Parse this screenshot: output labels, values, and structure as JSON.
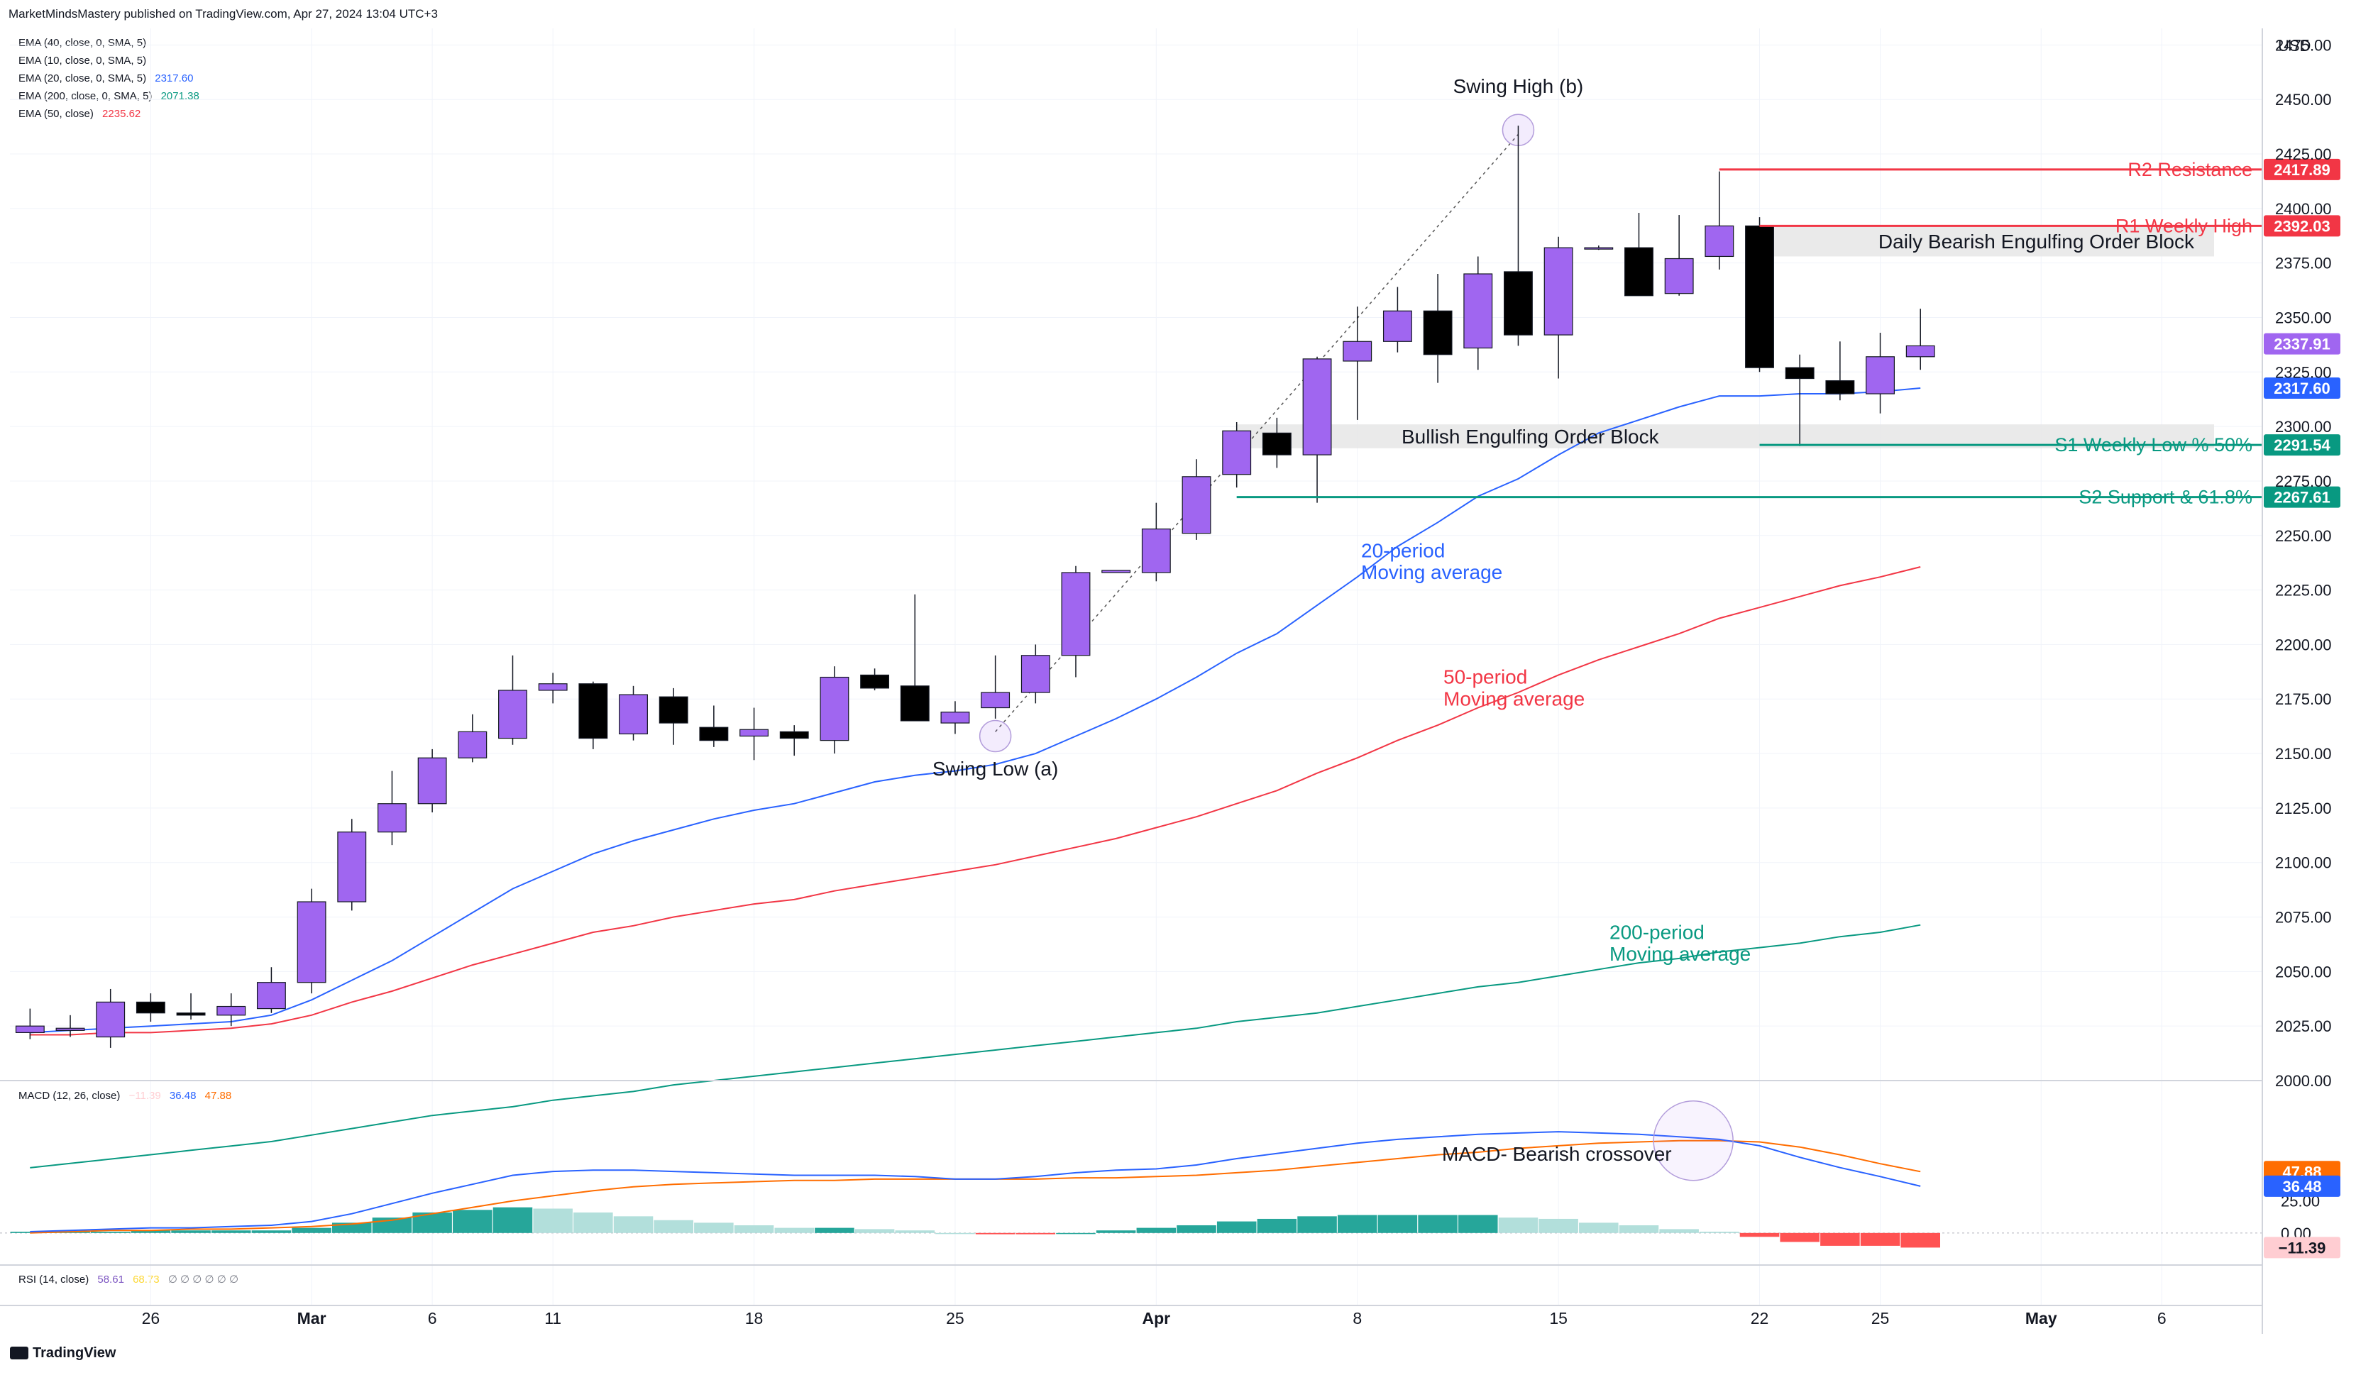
{
  "header": {
    "publisher": "MarketMindsMastery published on TradingView.com, Apr 27, 2024 13:04 UTC+3",
    "currency": "USD",
    "brand": "TradingView"
  },
  "indicators": [
    {
      "label": "EMA (40, close, 0, SMA, 5)",
      "value": "",
      "color": "#131722"
    },
    {
      "label": "EMA (10, close, 0, SMA, 5)",
      "value": "",
      "color": "#131722"
    },
    {
      "label": "EMA (20, close, 0, SMA, 5)",
      "value": "2317.60",
      "color": "#2962ff"
    },
    {
      "label": "EMA (200, close, 0, SMA, 5)",
      "value": "2071.38",
      "color": "#089981"
    },
    {
      "label": "EMA (50, close)",
      "value": "2235.62",
      "color": "#f23645"
    }
  ],
  "macd_legend": {
    "label": "MACD (12, 26, close)",
    "hist": "−11.39",
    "macd": "36.48",
    "signal": "47.88"
  },
  "rsi_legend": {
    "label": "RSI (14, close)",
    "rsi": "58.61",
    "ma": "68.73",
    "rest": "∅ ∅ ∅ ∅ ∅ ∅"
  },
  "colors": {
    "bull": "#a066f0",
    "bear": "#000000",
    "ema20": "#2962ff",
    "ema50": "#f23645",
    "ema200": "#089981",
    "macd": "#2962ff",
    "signal": "#ff6d00",
    "histUp": "#26a69a",
    "histUpFade": "#b2dfdb",
    "histDown": "#ff5252",
    "histDownFade": "#ffcdd2",
    "grid": "#f0f3fa"
  },
  "chart_data": [
    {
      "type": "candlestick",
      "title": "Price (USD)",
      "ylim": [
        2000,
        2480
      ],
      "yticks": [
        2000,
        2025,
        2050,
        2075,
        2100,
        2125,
        2150,
        2175,
        2200,
        2225,
        2250,
        2275,
        2300,
        2325,
        2350,
        2375,
        2400,
        2425,
        2450,
        2475
      ],
      "xtick_labels": [
        {
          "label": "26",
          "i": 3
        },
        {
          "label": "Mar",
          "i": 7
        },
        {
          "label": "6",
          "i": 10
        },
        {
          "label": "11",
          "i": 13
        },
        {
          "label": "18",
          "i": 18
        },
        {
          "label": "25",
          "i": 23
        },
        {
          "label": "Apr",
          "i": 28
        },
        {
          "label": "8",
          "i": 33
        },
        {
          "label": "15",
          "i": 38
        },
        {
          "label": "22",
          "i": 43
        },
        {
          "label": "25",
          "i": 46
        },
        {
          "label": "May",
          "i": 50
        },
        {
          "label": "6",
          "i": 53
        }
      ],
      "bars_visible": 56,
      "candles": [
        [
          2022,
          2033,
          2019,
          2025
        ],
        [
          2023,
          2030,
          2020,
          2024
        ],
        [
          2020,
          2042,
          2015,
          2036
        ],
        [
          2036,
          2040,
          2027,
          2031
        ],
        [
          2031,
          2040,
          2028,
          2030
        ],
        [
          2030,
          2040,
          2025,
          2034
        ],
        [
          2033,
          2052,
          2031,
          2045
        ],
        [
          2045,
          2088,
          2040,
          2082
        ],
        [
          2082,
          2120,
          2078,
          2114
        ],
        [
          2114,
          2142,
          2108,
          2127
        ],
        [
          2127,
          2152,
          2123,
          2148
        ],
        [
          2148,
          2168,
          2146,
          2160
        ],
        [
          2157,
          2195,
          2154,
          2179
        ],
        [
          2179,
          2187,
          2173,
          2182
        ],
        [
          2182,
          2183,
          2152,
          2157
        ],
        [
          2159,
          2181,
          2156,
          2177
        ],
        [
          2176,
          2180,
          2154,
          2164
        ],
        [
          2162,
          2172,
          2153,
          2156
        ],
        [
          2158,
          2171,
          2147,
          2161
        ],
        [
          2160,
          2163,
          2149,
          2157
        ],
        [
          2156,
          2190,
          2150,
          2185
        ],
        [
          2186,
          2189,
          2179,
          2180
        ],
        [
          2181,
          2223,
          2165,
          2165
        ],
        [
          2164,
          2174,
          2159,
          2169
        ],
        [
          2171,
          2195,
          2166,
          2178
        ],
        [
          2178,
          2200,
          2173,
          2195
        ],
        [
          2195,
          2236,
          2185,
          2233
        ],
        [
          2233,
          2234,
          2233,
          2234
        ],
        [
          2233,
          2265,
          2229,
          2253
        ],
        [
          2251,
          2285,
          2248,
          2277
        ],
        [
          2278,
          2302,
          2272,
          2298
        ],
        [
          2297,
          2304,
          2281,
          2287
        ],
        [
          2287,
          2332,
          2265,
          2331
        ],
        [
          2330,
          2355,
          2303,
          2339
        ],
        [
          2339,
          2364,
          2334,
          2353
        ],
        [
          2353,
          2370,
          2320,
          2333
        ],
        [
          2336,
          2378,
          2326,
          2370
        ],
        [
          2371,
          2438,
          2337,
          2342
        ],
        [
          2342,
          2387,
          2322,
          2382
        ],
        [
          2382,
          2383,
          2381,
          2382
        ],
        [
          2382,
          2398,
          2360,
          2360
        ],
        [
          2361,
          2397,
          2360,
          2377
        ],
        [
          2378,
          2417,
          2372,
          2392
        ],
        [
          2392,
          2396,
          2325,
          2327
        ],
        [
          2327,
          2333,
          2291,
          2322
        ],
        [
          2321,
          2339,
          2312,
          2315
        ],
        [
          2315,
          2343,
          2306,
          2332
        ],
        [
          2332,
          2354,
          2326,
          2337
        ]
      ],
      "ema20": [
        2022,
        2023,
        2024,
        2025,
        2026,
        2027,
        2030,
        2037,
        2046,
        2055,
        2066,
        2077,
        2088,
        2096,
        2104,
        2110,
        2115,
        2120,
        2124,
        2127,
        2132,
        2137,
        2140,
        2142,
        2145,
        2150,
        2158,
        2166,
        2175,
        2185,
        2196,
        2205,
        2218,
        2231,
        2245,
        2256,
        2268,
        2276,
        2287,
        2297,
        2303,
        2309,
        2314,
        2314,
        2315,
        2315,
        2316,
        2317.6
      ],
      "ema50": [
        2021,
        2021,
        2022,
        2022,
        2023,
        2024,
        2026,
        2030,
        2036,
        2041,
        2047,
        2053,
        2058,
        2063,
        2068,
        2071,
        2075,
        2078,
        2081,
        2083,
        2087,
        2090,
        2093,
        2096,
        2099,
        2103,
        2107,
        2111,
        2116,
        2121,
        2127,
        2133,
        2141,
        2148,
        2156,
        2163,
        2171,
        2178,
        2186,
        2193,
        2199,
        2205,
        2212,
        2217,
        2222,
        2227,
        2231,
        2235.62
      ],
      "ema200": [
        1960,
        1962,
        1964,
        1966,
        1968,
        1970,
        1972,
        1975,
        1978,
        1981,
        1984,
        1986,
        1988,
        1991,
        1993,
        1995,
        1998,
        2000,
        2002,
        2004,
        2006,
        2008,
        2010,
        2012,
        2014,
        2016,
        2018,
        2020,
        2022,
        2024,
        2027,
        2029,
        2031,
        2034,
        2037,
        2040,
        2043,
        2045,
        2048,
        2051,
        2054,
        2056,
        2059,
        2061,
        2063,
        2066,
        2068,
        2071.38
      ],
      "levels": [
        {
          "name": "R2 Resistance",
          "value": 2417.89,
          "label": "2417.89",
          "color": "#f23645",
          "from_i": 42
        },
        {
          "name": "R1 Weekly High",
          "value": 2392.03,
          "label": "2392.03",
          "color": "#f23645",
          "from_i": 43
        },
        {
          "name": "S1 Weekly Low % 50%",
          "value": 2291.54,
          "label": "2291.54",
          "color": "#089981",
          "from_i": 43
        },
        {
          "name": "S2 Support & 61.8%",
          "value": 2267.61,
          "label": "2267.61",
          "color": "#089981",
          "from_i": 30
        }
      ],
      "price_tags": [
        {
          "value": 2337.91,
          "label": "2337.91",
          "color": "#a066f0"
        },
        {
          "value": 2317.6,
          "label": "2317.60",
          "color": "#2962ff"
        }
      ],
      "zones": [
        {
          "name": "Daily Bearish Engulfing Order Block",
          "top": 2392,
          "bottom": 2378,
          "from_i": 43
        },
        {
          "name": "Bullish Engulfing Order Block",
          "top": 2301,
          "bottom": 2290,
          "from_i": 30
        }
      ],
      "annotations": [
        {
          "text": "Swing High (b)",
          "i": 37,
          "y": 2453,
          "color": "#131722"
        },
        {
          "text": "Swing Low (a)",
          "i": 24,
          "y": 2140,
          "color": "#131722"
        },
        {
          "text": "20-period",
          "i": 33,
          "y": 2240,
          "color": "#2962ff"
        },
        {
          "text": "Moving average",
          "i": 33,
          "y": 2230,
          "color": "#2962ff"
        },
        {
          "text": "50-period",
          "i": 35,
          "y": 2182,
          "color": "#f23645"
        },
        {
          "text": "Moving average",
          "i": 35,
          "y": 2172,
          "color": "#f23645"
        },
        {
          "text": "200-period",
          "i": 39,
          "y": 2065,
          "color": "#089981"
        },
        {
          "text": "Moving average",
          "i": 39,
          "y": 2055,
          "color": "#089981"
        }
      ]
    },
    {
      "type": "bar+line",
      "title": "MACD (12, 26, close)",
      "ylim": [
        -25,
        115
      ],
      "yticks": [
        0,
        25
      ],
      "macd": [
        1,
        2,
        3,
        4,
        4,
        5,
        6,
        9,
        15,
        23,
        31,
        38,
        45,
        48,
        49,
        49,
        48,
        47,
        46,
        45,
        45,
        45,
        44,
        42,
        42,
        44,
        47,
        49,
        50,
        53,
        58,
        62,
        66,
        70,
        73,
        75,
        77,
        78,
        79,
        78,
        77,
        75,
        73,
        68,
        59,
        51,
        44,
        36.48
      ],
      "signal": [
        0,
        1,
        2,
        2,
        3,
        3,
        4,
        5,
        7,
        10,
        15,
        20,
        25,
        29,
        33,
        36,
        38,
        39,
        40,
        41,
        41,
        42,
        42,
        42,
        42,
        42,
        43,
        43,
        44,
        45,
        47,
        49,
        52,
        55,
        58,
        61,
        63,
        66,
        68,
        70,
        71,
        72,
        72,
        71,
        67,
        61,
        54,
        47.88
      ],
      "histogram": [
        1,
        1,
        1,
        2,
        2,
        2,
        2,
        4,
        8,
        12,
        16,
        18,
        20,
        19,
        16,
        13,
        10,
        8,
        6,
        4,
        4,
        3,
        2,
        0,
        -1,
        -1,
        0,
        2,
        4,
        6,
        9,
        11,
        13,
        14,
        14,
        14,
        14,
        12,
        11,
        8,
        6,
        3,
        1,
        -3,
        -7,
        -10,
        -10,
        -11.39
      ],
      "annotation": "MACD- Bearish crossover",
      "value_tags": [
        {
          "value": 47.88,
          "label": "47.88",
          "color": "#ff6d00"
        },
        {
          "value": 36.48,
          "label": "36.48",
          "color": "#2962ff"
        },
        {
          "value": -11.39,
          "label": "−11.39",
          "color": "#ffcdd2"
        }
      ]
    },
    {
      "type": "line",
      "title": "RSI (14, close)",
      "values": [
        58.61
      ],
      "ma": [
        68.73
      ]
    }
  ]
}
